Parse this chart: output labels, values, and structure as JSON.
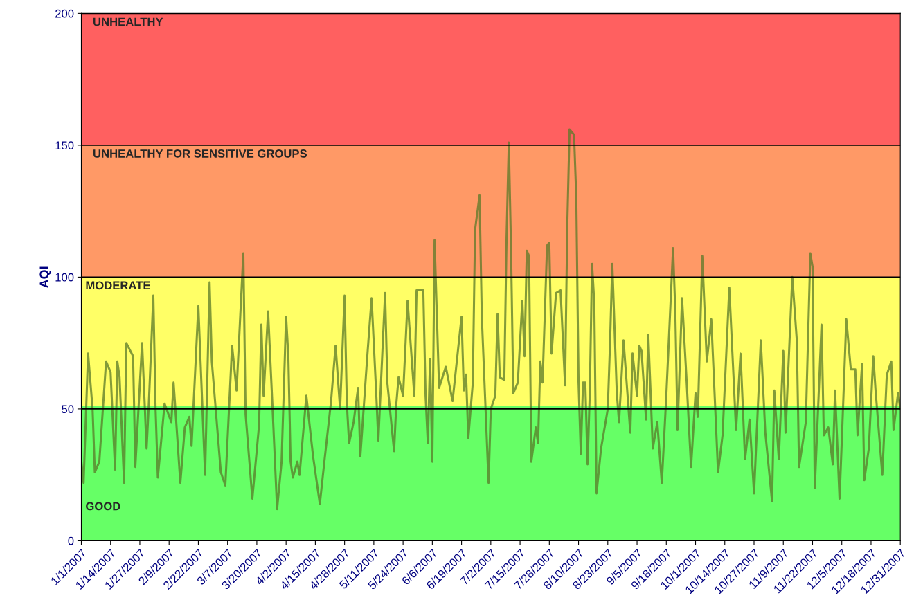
{
  "chart_data": {
    "type": "line",
    "ylabel": "AQI",
    "ylim": [
      0,
      200
    ],
    "yticks": [
      0,
      50,
      100,
      150,
      200
    ],
    "xlim": [
      "2007-01-01",
      "2007-12-31"
    ],
    "xticks": [
      {
        "value": "2007-01-01",
        "label": "1/1/2007"
      },
      {
        "value": "2007-01-14",
        "label": "1/14/2007"
      },
      {
        "value": "2007-01-27",
        "label": "1/27/2007"
      },
      {
        "value": "2007-02-09",
        "label": "2/9/2007"
      },
      {
        "value": "2007-02-22",
        "label": "2/22/2007"
      },
      {
        "value": "2007-03-07",
        "label": "3/7/2007"
      },
      {
        "value": "2007-03-20",
        "label": "3/20/2007"
      },
      {
        "value": "2007-04-02",
        "label": "4/2/2007"
      },
      {
        "value": "2007-04-15",
        "label": "4/15/2007"
      },
      {
        "value": "2007-04-28",
        "label": "4/28/2007"
      },
      {
        "value": "2007-05-11",
        "label": "5/11/2007"
      },
      {
        "value": "2007-05-24",
        "label": "5/24/2007"
      },
      {
        "value": "2007-06-06",
        "label": "6/6/2007"
      },
      {
        "value": "2007-06-19",
        "label": "6/19/2007"
      },
      {
        "value": "2007-07-02",
        "label": "7/2/2007"
      },
      {
        "value": "2007-07-15",
        "label": "7/15/2007"
      },
      {
        "value": "2007-07-28",
        "label": "7/28/2007"
      },
      {
        "value": "2007-08-10",
        "label": "8/10/2007"
      },
      {
        "value": "2007-08-23",
        "label": "8/23/2007"
      },
      {
        "value": "2007-09-05",
        "label": "9/5/2007"
      },
      {
        "value": "2007-09-18",
        "label": "9/18/2007"
      },
      {
        "value": "2007-10-01",
        "label": "10/1/2007"
      },
      {
        "value": "2007-10-14",
        "label": "10/14/2007"
      },
      {
        "value": "2007-10-27",
        "label": "10/27/2007"
      },
      {
        "value": "2007-11-09",
        "label": "11/9/2007"
      },
      {
        "value": "2007-11-22",
        "label": "11/22/2007"
      },
      {
        "value": "2007-12-05",
        "label": "12/5/2007"
      },
      {
        "value": "2007-12-18",
        "label": "12/18/2007"
      },
      {
        "value": "2007-12-31",
        "label": "12/31/2007"
      }
    ],
    "bands": [
      {
        "axis": "y",
        "from": 0,
        "to": 51,
        "label": "GOOD",
        "color": "#66ff66"
      },
      {
        "axis": "y",
        "from": 51,
        "to": 100,
        "label": "MODERATE",
        "color": "#ffff66"
      },
      {
        "axis": "y",
        "from": 100,
        "to": 150,
        "label": "UNHEALTHY FOR SENSITIVE GROUPS",
        "color": "#ff9966"
      },
      {
        "axis": "y",
        "from": 150,
        "to": 200,
        "label": "UNHEALTHY",
        "color": "#ff6060"
      }
    ],
    "grid": "y",
    "legend": false,
    "series": [
      {
        "color": "#5a7a2a",
        "x": [
          "2007-01-01",
          "2007-01-02",
          "2007-01-04",
          "2007-01-06",
          "2007-01-07",
          "2007-01-09",
          "2007-01-12",
          "2007-01-14",
          "2007-01-16",
          "2007-01-17",
          "2007-01-18",
          "2007-01-20",
          "2007-01-21",
          "2007-01-24",
          "2007-01-25",
          "2007-01-28",
          "2007-01-30",
          "2007-01-31",
          "2007-02-02",
          "2007-02-03",
          "2007-02-04",
          "2007-02-07",
          "2007-02-10",
          "2007-02-11",
          "2007-02-14",
          "2007-02-16",
          "2007-02-18",
          "2007-02-19",
          "2007-02-22",
          "2007-02-25",
          "2007-02-27",
          "2007-02-28",
          "2007-03-02",
          "2007-03-04",
          "2007-03-06",
          "2007-03-09",
          "2007-03-11",
          "2007-03-14",
          "2007-03-15",
          "2007-03-18",
          "2007-03-21",
          "2007-03-22",
          "2007-03-23",
          "2007-03-25",
          "2007-03-27",
          "2007-03-29",
          "2007-03-31",
          "2007-04-02",
          "2007-04-03",
          "2007-04-04",
          "2007-04-05",
          "2007-04-07",
          "2007-04-08",
          "2007-04-11",
          "2007-04-14",
          "2007-04-17",
          "2007-04-19",
          "2007-04-22",
          "2007-04-24",
          "2007-04-26",
          "2007-04-28",
          "2007-04-29",
          "2007-04-30",
          "2007-05-02",
          "2007-05-04",
          "2007-05-05",
          "2007-05-08",
          "2007-05-10",
          "2007-05-12",
          "2007-05-13",
          "2007-05-16",
          "2007-05-17",
          "2007-05-20",
          "2007-05-21",
          "2007-05-22",
          "2007-05-24",
          "2007-05-26",
          "2007-05-29",
          "2007-05-30",
          "2007-06-02",
          "2007-06-03",
          "2007-06-04",
          "2007-06-05",
          "2007-06-06",
          "2007-06-07",
          "2007-06-09",
          "2007-06-12",
          "2007-06-15",
          "2007-06-19",
          "2007-06-20",
          "2007-06-21",
          "2007-06-22",
          "2007-06-24",
          "2007-06-25",
          "2007-06-27",
          "2007-06-28",
          "2007-07-01",
          "2007-07-02",
          "2007-07-04",
          "2007-07-05",
          "2007-07-06",
          "2007-07-08",
          "2007-07-09",
          "2007-07-10",
          "2007-07-11",
          "2007-07-12",
          "2007-07-14",
          "2007-07-16",
          "2007-07-17",
          "2007-07-18",
          "2007-07-19",
          "2007-07-20",
          "2007-07-22",
          "2007-07-23",
          "2007-07-24",
          "2007-07-25",
          "2007-07-27",
          "2007-07-28",
          "2007-07-29",
          "2007-07-31",
          "2007-08-02",
          "2007-08-04",
          "2007-08-05",
          "2007-08-06",
          "2007-08-08",
          "2007-08-09",
          "2007-08-10",
          "2007-08-11",
          "2007-08-12",
          "2007-08-13",
          "2007-08-14",
          "2007-08-15",
          "2007-08-16",
          "2007-08-17",
          "2007-08-18",
          "2007-08-20",
          "2007-08-23",
          "2007-08-24",
          "2007-08-25",
          "2007-08-27",
          "2007-08-28",
          "2007-08-30",
          "2007-09-02",
          "2007-09-03",
          "2007-09-05",
          "2007-09-06",
          "2007-09-07",
          "2007-09-09",
          "2007-09-10",
          "2007-09-12",
          "2007-09-14",
          "2007-09-16",
          "2007-09-18",
          "2007-09-21",
          "2007-09-22",
          "2007-09-23",
          "2007-09-25",
          "2007-09-27",
          "2007-09-29",
          "2007-10-01",
          "2007-10-02",
          "2007-10-04",
          "2007-10-06",
          "2007-10-08",
          "2007-10-11",
          "2007-10-13",
          "2007-10-16",
          "2007-10-19",
          "2007-10-21",
          "2007-10-23",
          "2007-10-25",
          "2007-10-27",
          "2007-10-30",
          "2007-11-01",
          "2007-11-04",
          "2007-11-05",
          "2007-11-07",
          "2007-11-09",
          "2007-11-10",
          "2007-11-13",
          "2007-11-15",
          "2007-11-16",
          "2007-11-19",
          "2007-11-21",
          "2007-11-22",
          "2007-11-23",
          "2007-11-26",
          "2007-11-27",
          "2007-11-29",
          "2007-12-01",
          "2007-12-02",
          "2007-12-04",
          "2007-12-05",
          "2007-12-07",
          "2007-12-09",
          "2007-12-11",
          "2007-12-12",
          "2007-12-14",
          "2007-12-15",
          "2007-12-17",
          "2007-12-19",
          "2007-12-20",
          "2007-12-23",
          "2007-12-25",
          "2007-12-27",
          "2007-12-28",
          "2007-12-30",
          "2007-12-31"
        ],
        "values": [
          30,
          22,
          71,
          50,
          26,
          30,
          68,
          64,
          27,
          68,
          62,
          22,
          75,
          70,
          28,
          75,
          35,
          52,
          93,
          50,
          24,
          52,
          45,
          60,
          22,
          43,
          47,
          36,
          89,
          25,
          98,
          68,
          47,
          26,
          21,
          74,
          57,
          109,
          48,
          16,
          44,
          82,
          55,
          87,
          50,
          12,
          30,
          85,
          70,
          30,
          24,
          30,
          25,
          55,
          32,
          14,
          30,
          53,
          74,
          50,
          93,
          52,
          37,
          45,
          58,
          32,
          69,
          92,
          57,
          38,
          94,
          60,
          34,
          52,
          62,
          55,
          91,
          55,
          95,
          95,
          55,
          37,
          69,
          30,
          114,
          58,
          66,
          53,
          85,
          57,
          63,
          39,
          60,
          118,
          131,
          85,
          22,
          50,
          55,
          86,
          62,
          61,
          115,
          151,
          110,
          56,
          60,
          91,
          70,
          110,
          108,
          30,
          43,
          37,
          68,
          60,
          112,
          113,
          71,
          94,
          95,
          59,
          120,
          156,
          154,
          130,
          60,
          33,
          60,
          60,
          29,
          56,
          105,
          90,
          18,
          35,
          50,
          75,
          105,
          56,
          45,
          76,
          41,
          71,
          55,
          74,
          72,
          46,
          78,
          35,
          45,
          22,
          55,
          111,
          87,
          42,
          92,
          61,
          28,
          56,
          47,
          108,
          68,
          84,
          26,
          40,
          96,
          42,
          71,
          31,
          46,
          18,
          76,
          41,
          15,
          57,
          31,
          72,
          41,
          100,
          76,
          28,
          45,
          109,
          104,
          20,
          82,
          40,
          43,
          29,
          57,
          16,
          38,
          84,
          65,
          65,
          40,
          67,
          23,
          35,
          70,
          57,
          25,
          63,
          68,
          42,
          56,
          50
        ]
      }
    ]
  }
}
